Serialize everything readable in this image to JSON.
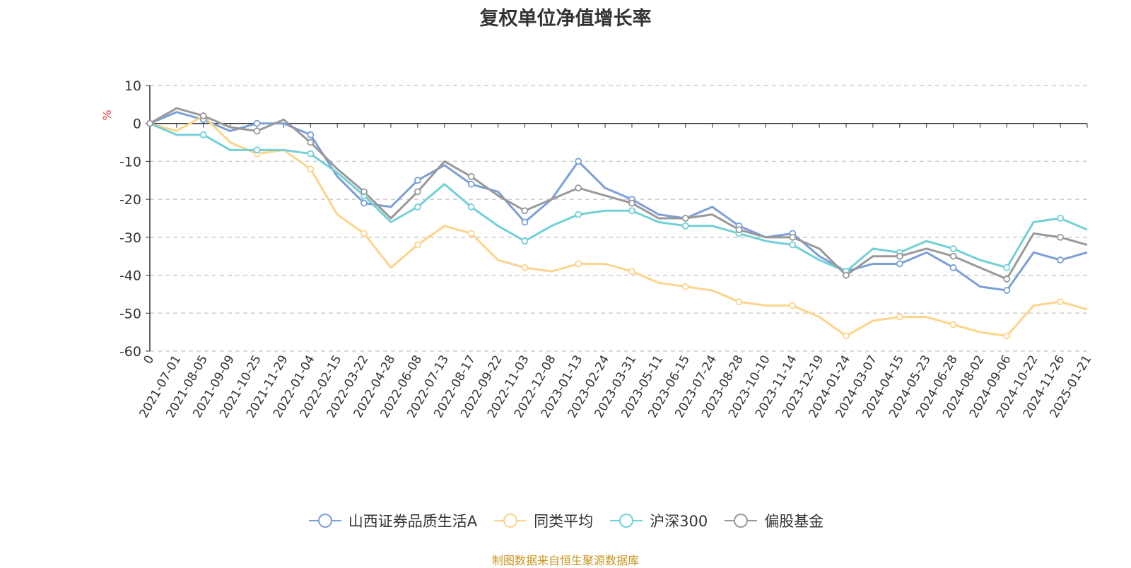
{
  "chart_data": {
    "type": "line",
    "title": "复权单位净值增长率",
    "ylabel": "%",
    "xlabel": "",
    "ylim": [
      -60,
      10
    ],
    "yticks": [
      10,
      0,
      -10,
      -20,
      -30,
      -40,
      -50,
      -60
    ],
    "grid": true,
    "legend_position": "bottom-center",
    "x": [
      "0",
      "2021-07-01",
      "2021-08-05",
      "2021-09-09",
      "2021-10-25",
      "2021-11-29",
      "2022-01-04",
      "2022-02-15",
      "2022-03-22",
      "2022-04-28",
      "2022-06-08",
      "2022-07-13",
      "2022-08-17",
      "2022-09-22",
      "2022-11-03",
      "2022-12-08",
      "2023-01-13",
      "2023-02-24",
      "2023-03-31",
      "2023-05-11",
      "2023-06-15",
      "2023-07-24",
      "2023-08-28",
      "2023-10-10",
      "2023-11-14",
      "2023-12-19",
      "2024-01-24",
      "2024-03-07",
      "2024-04-15",
      "2024-05-23",
      "2024-06-28",
      "2024-08-02",
      "2024-09-06",
      "2024-10-22",
      "2024-11-26",
      "2025-01-21"
    ],
    "series": [
      {
        "name": "山西证券品质生活A",
        "color": "#7b9fd6",
        "values": [
          0,
          3,
          1,
          -2,
          0,
          0,
          -3,
          -14,
          -21,
          -22,
          -15,
          -11,
          -16,
          -18,
          -26,
          -20,
          -10,
          -17,
          -20,
          -24,
          -25,
          -22,
          -27,
          -30,
          -29,
          -35,
          -39,
          -37,
          -37,
          -34,
          -38,
          -43,
          -44,
          -34,
          -36,
          -34
        ]
      },
      {
        "name": "同类平均",
        "color": "#fcd48a",
        "values": [
          0,
          -2,
          2,
          -5,
          -8,
          -7,
          -12,
          -24,
          -29,
          -38,
          -32,
          -27,
          -29,
          -36,
          -38,
          -39,
          -37,
          -37,
          -39,
          -42,
          -43,
          -44,
          -47,
          -48,
          -48,
          -51,
          -56,
          -52,
          -51,
          -51,
          -53,
          -55,
          -56,
          -48,
          -47,
          -49
        ]
      },
      {
        "name": "沪深300",
        "color": "#72d0d6",
        "values": [
          0,
          -3,
          -3,
          -7,
          -7,
          -7,
          -8,
          -13,
          -19,
          -26,
          -22,
          -16,
          -22,
          -27,
          -31,
          -27,
          -24,
          -23,
          -23,
          -26,
          -27,
          -27,
          -29,
          -31,
          -32,
          -36,
          -39,
          -33,
          -34,
          -31,
          -33,
          -36,
          -38,
          -26,
          -25,
          -28
        ]
      },
      {
        "name": "偏股基金",
        "color": "#999999",
        "values": [
          0,
          4,
          2,
          -1,
          -2,
          1,
          -5,
          -12,
          -18,
          -25,
          -18,
          -10,
          -14,
          -19,
          -23,
          -20,
          -17,
          -19,
          -21,
          -25,
          -25,
          -24,
          -28,
          -30,
          -30,
          -33,
          -40,
          -35,
          -35,
          -33,
          -35,
          -38,
          -41,
          -29,
          -30,
          -32
        ]
      }
    ]
  },
  "source_note": "制图数据来自恒生聚源数据库"
}
